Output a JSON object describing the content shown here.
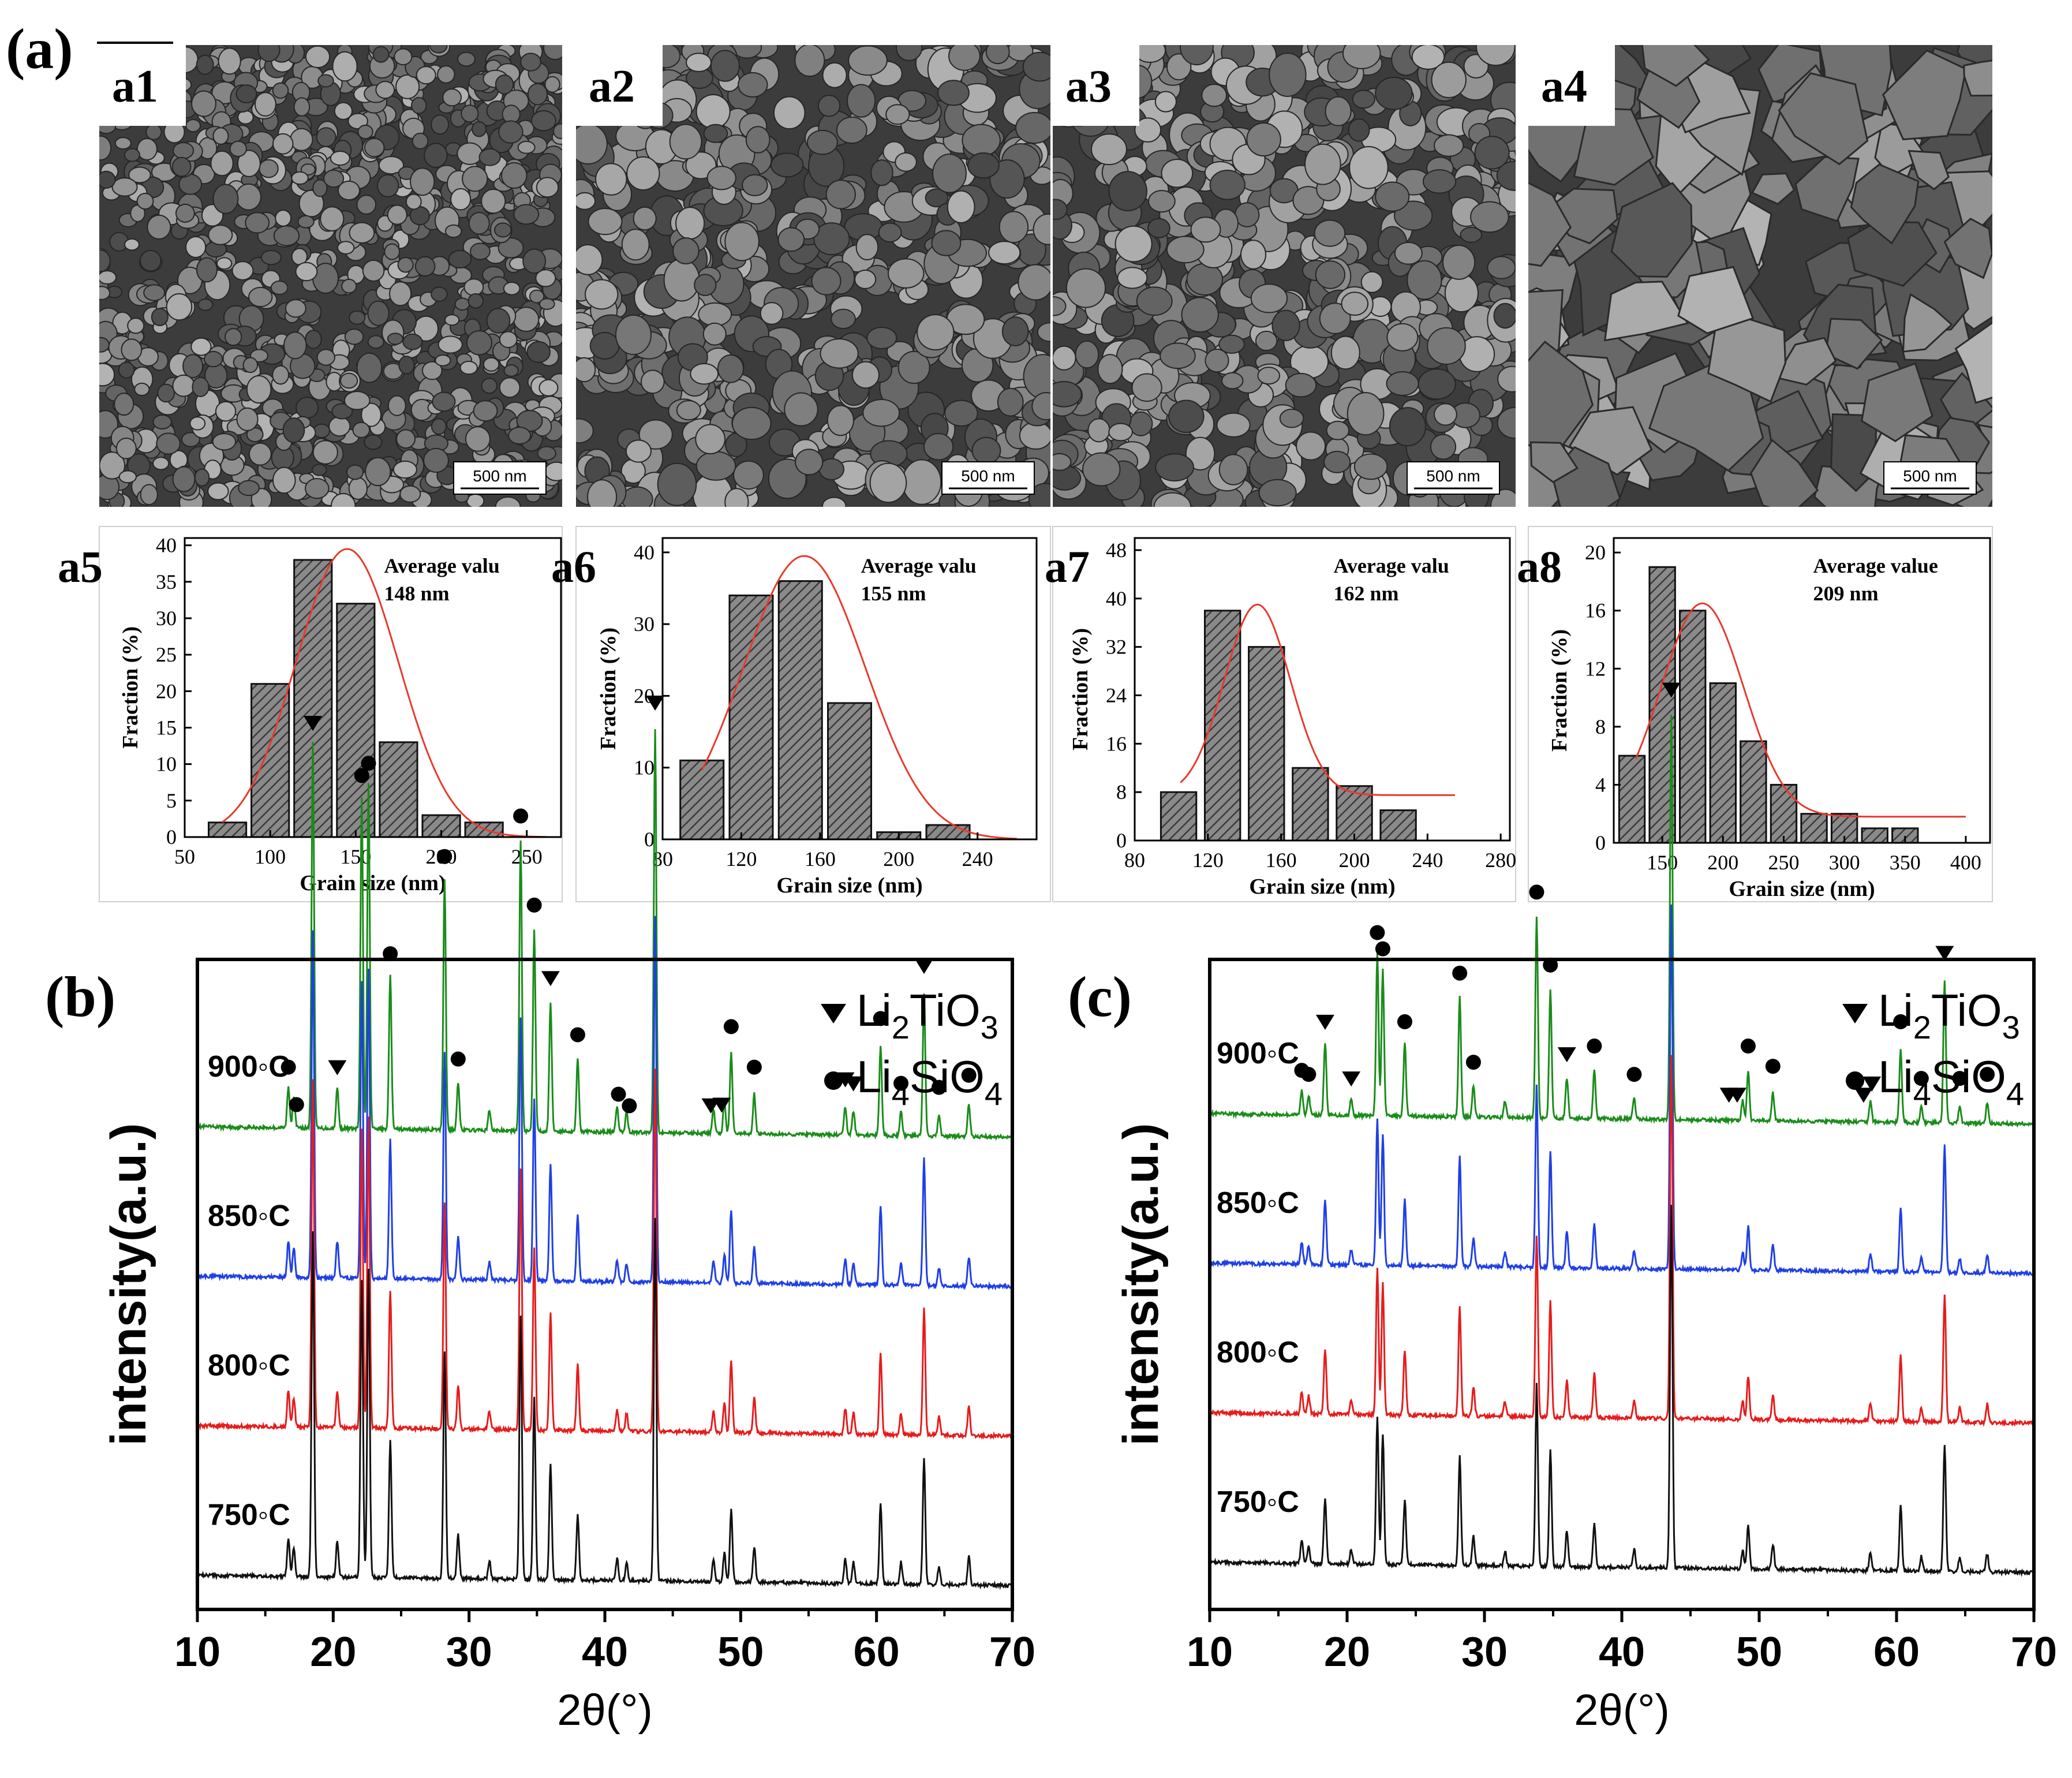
{
  "panel_labels": {
    "a": "(a)",
    "b": "(b)",
    "c": "(c)"
  },
  "sem_images": [
    {
      "label": "a1",
      "scale_bar": "500 nm",
      "texture": "fine"
    },
    {
      "label": "a2",
      "scale_bar": "500 nm",
      "texture": "medium"
    },
    {
      "label": "a3",
      "scale_bar": "500 nm",
      "texture": "medium"
    },
    {
      "label": "a4",
      "scale_bar": "500 nm",
      "texture": "coarse"
    }
  ],
  "chart_data": [
    {
      "type": "bar",
      "panel": "a5",
      "xlabel": "Grain size (nm)",
      "ylabel": "Fraction (%)",
      "annotation": [
        "Average valu",
        "148 nm"
      ],
      "xlim": [
        50,
        270
      ],
      "ylim": [
        0,
        41
      ],
      "xticks": [
        50,
        100,
        150,
        200,
        250
      ],
      "yticks": [
        0,
        5,
        10,
        15,
        20,
        25,
        30,
        35,
        40
      ],
      "bin_width": 25,
      "bins": [
        75,
        100,
        125,
        150,
        175,
        200,
        225,
        250
      ],
      "values": [
        2,
        21,
        38,
        32,
        13,
        3,
        2,
        0
      ],
      "fit": {
        "type": "gaussian",
        "center": 145,
        "sigma": 30,
        "amplitude": 39.5,
        "x_range": [
          72,
          262
        ]
      }
    },
    {
      "type": "bar",
      "panel": "a6",
      "xlabel": "Grain size (nm)",
      "ylabel": "Fraction (%)",
      "annotation": [
        "Average valu",
        "155 nm"
      ],
      "xlim": [
        80,
        270
      ],
      "ylim": [
        0,
        42
      ],
      "xticks": [
        80,
        120,
        160,
        200,
        240
      ],
      "yticks": [
        0,
        10,
        20,
        30,
        40
      ],
      "bin_width": 25,
      "bins": [
        100,
        125,
        150,
        175,
        200,
        225,
        250
      ],
      "values": [
        11,
        34,
        36,
        19,
        1,
        2,
        0
      ],
      "fit": {
        "type": "gaussian",
        "center": 152,
        "sigma": 31,
        "amplitude": 39.5,
        "x_range": [
          100,
          260
        ]
      }
    },
    {
      "type": "bar",
      "panel": "a7",
      "xlabel": "Grain size (nm)",
      "ylabel": "Fraction (%)",
      "annotation": [
        "Average valu",
        "162 nm"
      ],
      "xlim": [
        80,
        285
      ],
      "ylim": [
        0,
        50
      ],
      "xticks": [
        80,
        120,
        160,
        200,
        240,
        280
      ],
      "yticks": [
        0,
        8,
        16,
        24,
        32,
        40,
        48
      ],
      "bin_width": 22,
      "bins": [
        104,
        128,
        152,
        176,
        200,
        224,
        248
      ],
      "values": [
        8,
        38,
        32,
        12,
        9,
        5,
        0
      ],
      "fit": {
        "type": "gaussian",
        "center": 147,
        "sigma": 18,
        "amplitude": 39,
        "offset": 7.5,
        "x_range": [
          105,
          255
        ]
      }
    },
    {
      "type": "bar",
      "panel": "a8",
      "xlabel": "Grain size (nm)",
      "ylabel": "Fraction (%)",
      "annotation": [
        "Average value",
        "209 nm"
      ],
      "xlim": [
        110,
        420
      ],
      "ylim": [
        0,
        21
      ],
      "xticks": [
        150,
        200,
        250,
        300,
        350,
        400
      ],
      "yticks": [
        0,
        4,
        8,
        12,
        16,
        20
      ],
      "bin_width": 24,
      "bins": [
        125,
        150,
        175,
        200,
        225,
        250,
        275,
        300,
        325,
        350,
        375,
        400
      ],
      "values": [
        6,
        19,
        16,
        11,
        7,
        4,
        2,
        2,
        1,
        1,
        0,
        0
      ],
      "fit": {
        "type": "gaussian",
        "center": 183,
        "sigma": 34,
        "amplitude": 16.5,
        "offset": 1.8,
        "x_range": [
          128,
          400
        ]
      }
    },
    {
      "type": "line",
      "panel": "(b)",
      "xlabel": "2θ(°)",
      "ylabel": "intensity(a.u.)",
      "xlim": [
        10,
        70
      ],
      "xticks": [
        10,
        20,
        30,
        40,
        50,
        60,
        70
      ],
      "legend": [
        {
          "marker": "triangle",
          "label": "Li",
          "sub1": "2",
          "mid": "TiO",
          "sub2": "3"
        },
        {
          "marker": "circle",
          "label": "Li",
          "sub1": "4",
          "mid": "SiO",
          "sub2": "4"
        }
      ],
      "series": [
        {
          "name": "900°C",
          "label": "900◦C",
          "color": "#1a8c1a",
          "baseline": 0.14
        },
        {
          "name": "850°C",
          "label": "850◦C",
          "color": "#1f3fe6",
          "baseline": 0.37
        },
        {
          "name": "800°C",
          "label": "800◦C",
          "color": "#e61c1c",
          "baseline": 0.6
        },
        {
          "name": "750°C",
          "label": "750◦C",
          "color": "#111111",
          "baseline": 0.83
        }
      ],
      "peaks": [
        [
          16.7,
          0.1
        ],
        [
          17.1,
          0.08
        ],
        [
          18.5,
          0.95
        ],
        [
          20.3,
          0.1
        ],
        [
          22.1,
          0.82
        ],
        [
          22.6,
          0.85
        ],
        [
          24.2,
          0.38
        ],
        [
          28.2,
          0.62
        ],
        [
          29.2,
          0.12
        ],
        [
          31.5,
          0.05
        ],
        [
          33.8,
          0.72
        ],
        [
          34.8,
          0.5
        ],
        [
          36.0,
          0.32
        ],
        [
          38.0,
          0.18
        ],
        [
          40.9,
          0.06
        ],
        [
          41.6,
          0.05
        ],
        [
          43.7,
          1.0
        ],
        [
          48.0,
          0.06
        ],
        [
          48.8,
          0.08
        ],
        [
          49.3,
          0.2
        ],
        [
          51.0,
          0.1
        ],
        [
          57.7,
          0.07
        ],
        [
          58.3,
          0.06
        ],
        [
          60.3,
          0.22
        ],
        [
          61.8,
          0.06
        ],
        [
          63.5,
          0.35
        ],
        [
          64.6,
          0.05
        ],
        [
          66.8,
          0.08
        ]
      ],
      "triangles": [
        18.5,
        20.3,
        36.0,
        43.7,
        47.8,
        48.6,
        57.7,
        58.3,
        63.5
      ],
      "circles": [
        16.7,
        17.3,
        22.1,
        22.6,
        24.2,
        28.2,
        29.2,
        33.8,
        34.8,
        38.0,
        41.0,
        41.8,
        49.3,
        51.0,
        60.3,
        61.8,
        64.6,
        66.8
      ]
    },
    {
      "type": "line",
      "panel": "(c)",
      "xlabel": "2θ(°)",
      "ylabel": "intensity(a.u.)",
      "xlim": [
        10,
        70
      ],
      "xticks": [
        10,
        20,
        30,
        40,
        50,
        60,
        70
      ],
      "legend": [
        {
          "marker": "triangle",
          "label": "Li",
          "sub1": "2",
          "mid": "TiO",
          "sub2": "3"
        },
        {
          "marker": "circle",
          "label": "Li",
          "sub1": "4",
          "mid": "SiO",
          "sub2": "4"
        }
      ],
      "series": [
        {
          "name": "900°C",
          "label": "900◦C",
          "color": "#1a8c1a",
          "baseline": 0.12
        },
        {
          "name": "850°C",
          "label": "850◦C",
          "color": "#1f3fe6",
          "baseline": 0.35
        },
        {
          "name": "800°C",
          "label": "800◦C",
          "color": "#e61c1c",
          "baseline": 0.58
        },
        {
          "name": "750°C",
          "label": "750◦C",
          "color": "#111111",
          "baseline": 0.81
        }
      ],
      "peaks": [
        [
          16.7,
          0.06
        ],
        [
          17.2,
          0.05
        ],
        [
          18.4,
          0.18
        ],
        [
          20.3,
          0.04
        ],
        [
          22.2,
          0.4
        ],
        [
          22.6,
          0.36
        ],
        [
          24.2,
          0.18
        ],
        [
          28.2,
          0.3
        ],
        [
          29.2,
          0.08
        ],
        [
          31.5,
          0.04
        ],
        [
          33.8,
          0.5
        ],
        [
          34.8,
          0.32
        ],
        [
          36.0,
          0.1
        ],
        [
          38.0,
          0.12
        ],
        [
          40.9,
          0.05
        ],
        [
          43.6,
          1.0
        ],
        [
          48.8,
          0.05
        ],
        [
          49.2,
          0.12
        ],
        [
          51.0,
          0.07
        ],
        [
          58.1,
          0.05
        ],
        [
          60.3,
          0.18
        ],
        [
          61.8,
          0.04
        ],
        [
          63.5,
          0.35
        ],
        [
          64.6,
          0.04
        ],
        [
          66.6,
          0.05
        ]
      ],
      "triangles": [
        18.4,
        20.3,
        36.0,
        43.6,
        47.8,
        48.4,
        57.6,
        58.2,
        63.5
      ],
      "circles": [
        16.7,
        17.2,
        22.2,
        22.6,
        24.2,
        28.2,
        29.2,
        33.8,
        34.8,
        38.0,
        40.9,
        49.2,
        51.0,
        60.3,
        61.8,
        64.6,
        66.6
      ]
    }
  ]
}
